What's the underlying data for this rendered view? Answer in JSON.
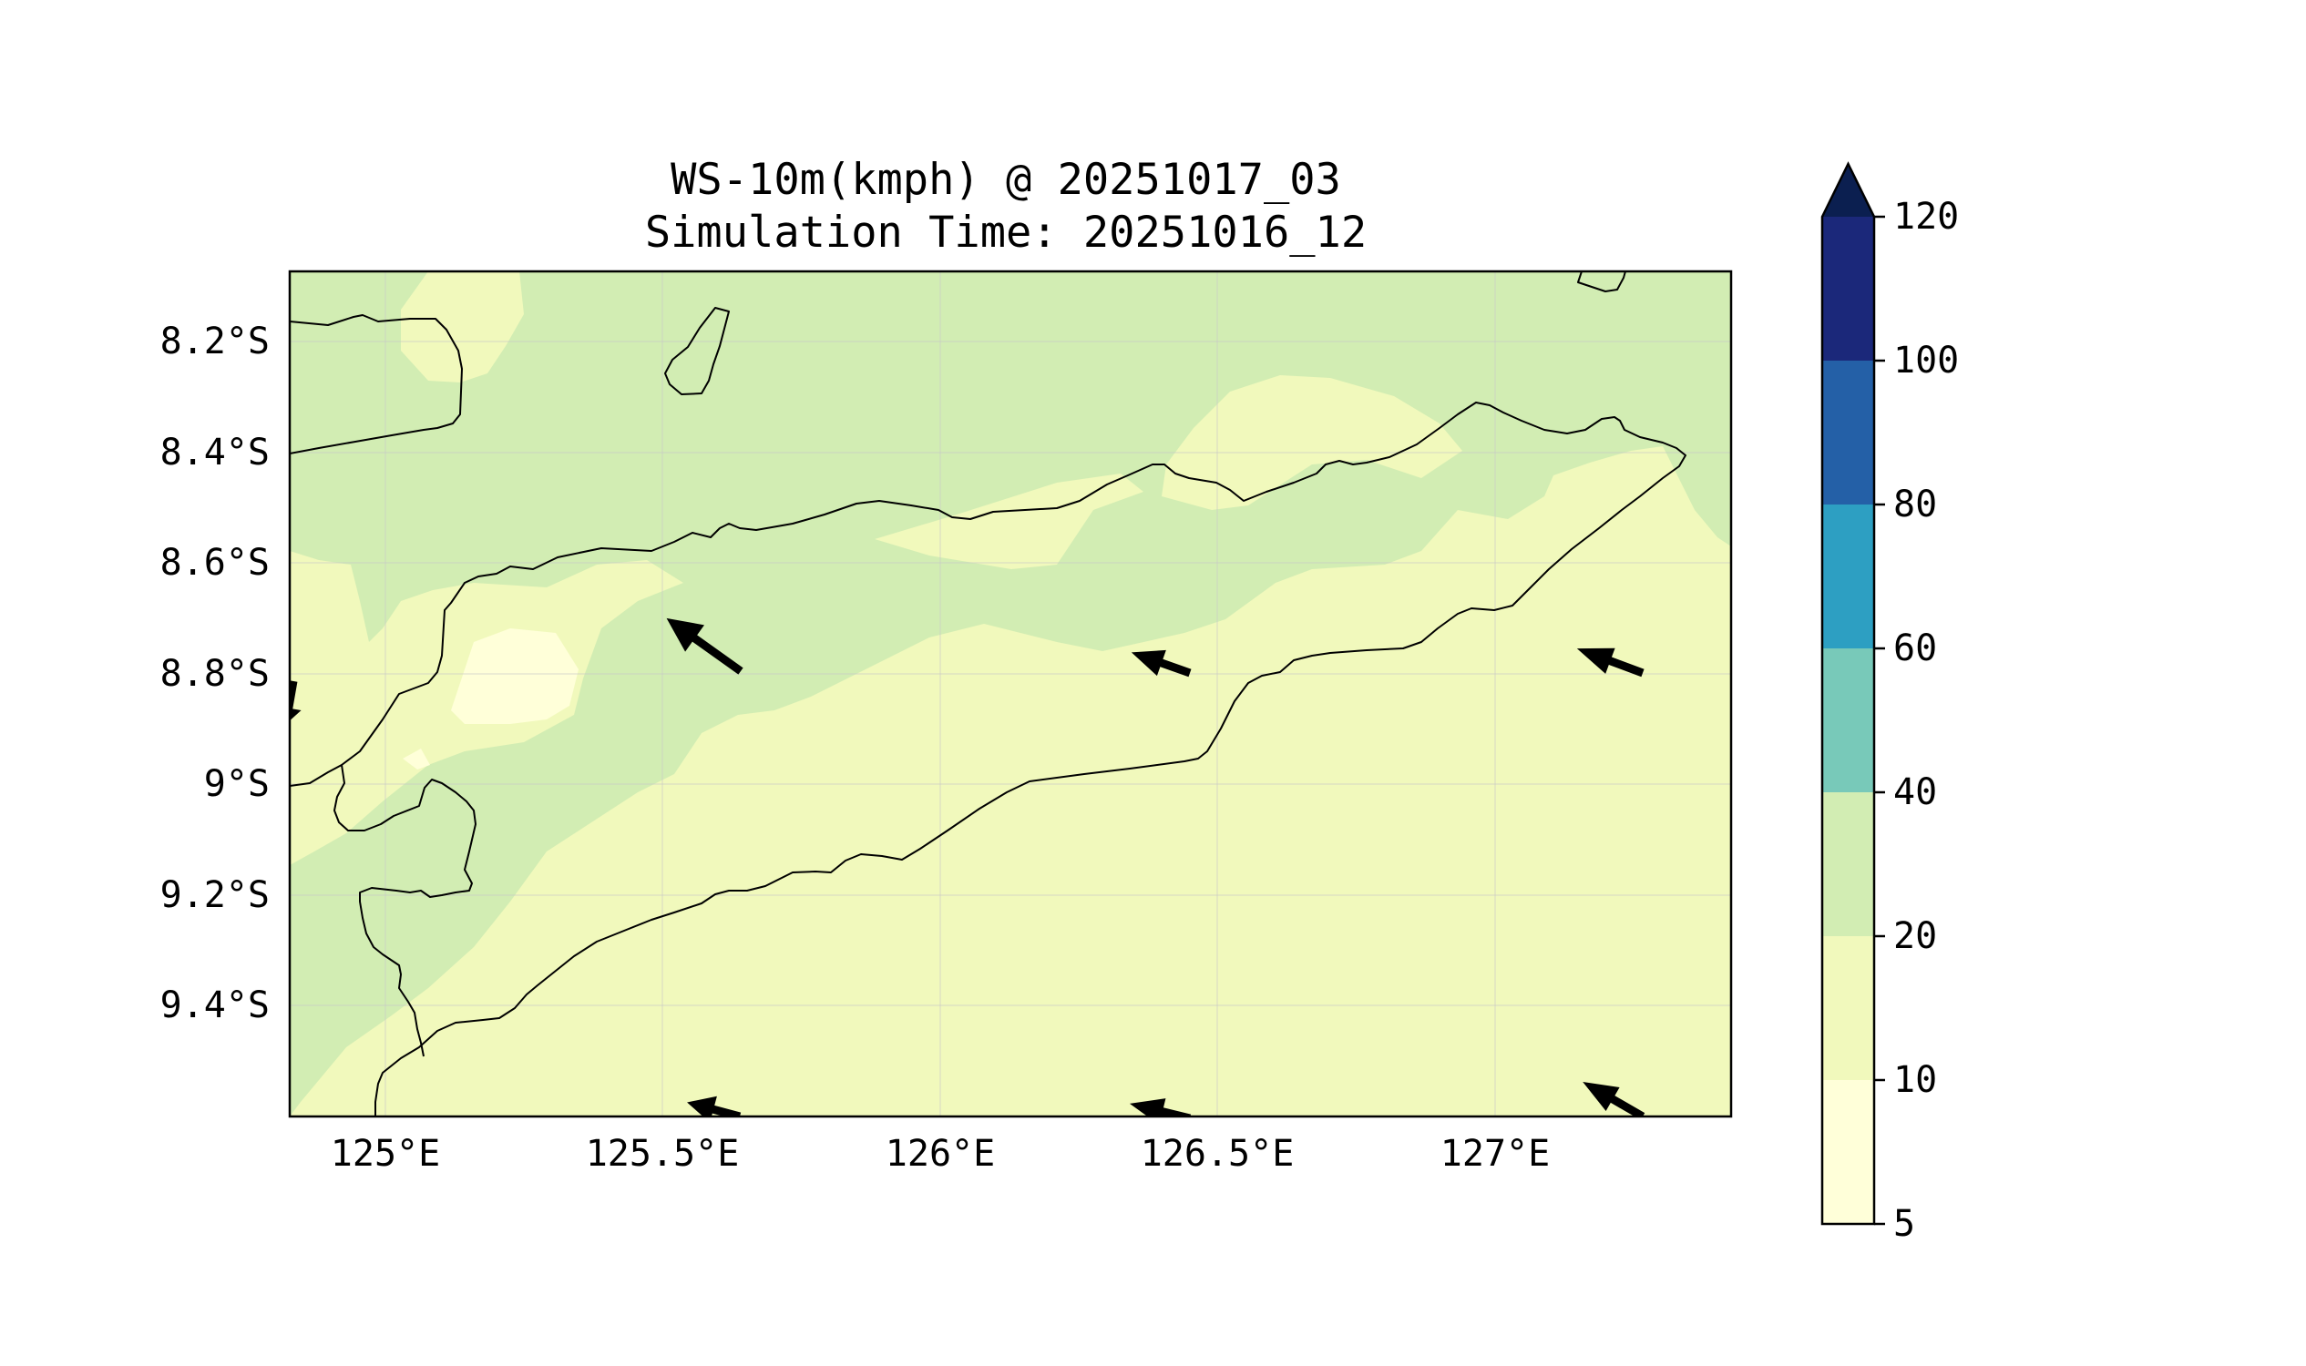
{
  "map": {
    "title_line1": "WS-10m(kmph) @ 20251017_03",
    "title_line2": "Simulation Time: 20251016_12",
    "lat_labels": [
      "8.2°S",
      "8.4°S",
      "8.6°S",
      "8.8°S",
      "9°S",
      "9.2°S",
      "9.4°S"
    ],
    "lon_labels": [
      "125°E",
      "125.5°E",
      "126°E",
      "126.5°E",
      "127°E"
    ],
    "variable": "10 m wind speed",
    "units": "kmph"
  },
  "colorbar": {
    "levels": [
      "5",
      "10",
      "20",
      "40",
      "60",
      "80",
      "100",
      "120"
    ],
    "colors": [
      "#ffffd9",
      "#edf8b1",
      "#c7e9b4",
      "#7fcdbb",
      "#41b6c4",
      "#2c7fb8",
      "#253494",
      "#081d58"
    ],
    "extend": "max"
  },
  "colors": {
    "band_5_10": "#ffffd9",
    "band_10_20": "#f1f9bc",
    "band_20_40": "#d2edb3",
    "coastline": "#000000",
    "wind_arrow": "#000000"
  }
}
